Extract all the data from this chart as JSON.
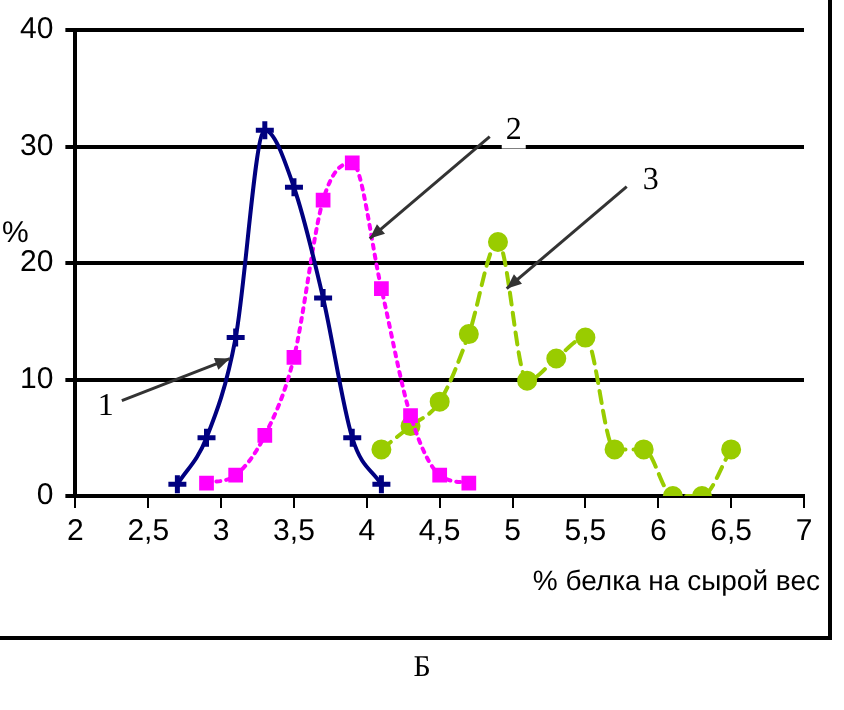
{
  "chart_data": {
    "type": "line",
    "xlabel": "% белка на сырой вес",
    "ylabel": "%",
    "xlim": [
      2,
      7
    ],
    "xticks": [
      2,
      {
        "value": 2.5,
        "label": "2,5"
      },
      3,
      {
        "value": 3.5,
        "label": "3,5"
      },
      4,
      {
        "value": 4.5,
        "label": "4,5"
      },
      5,
      {
        "value": 5.5,
        "label": "5,5"
      },
      6,
      {
        "value": 6.5,
        "label": "6,5"
      },
      7
    ],
    "ylim": [
      0,
      40
    ],
    "yticks": [
      0,
      10,
      20,
      30,
      40
    ],
    "grid": "y",
    "legend": false,
    "series": [
      {
        "color": "#000080",
        "marker": "cross",
        "line_style": "solid",
        "x": [
          2.7,
          2.9,
          3.1,
          3.3,
          3.5,
          3.7,
          3.9,
          4.1
        ],
        "values": [
          1,
          5,
          13.6,
          31.4,
          26.5,
          17,
          5,
          1
        ]
      },
      {
        "color": "#ff00ff",
        "marker": "square",
        "line_style": "dotted",
        "x": [
          2.9,
          3.1,
          3.3,
          3.5,
          3.7,
          3.9,
          4.1,
          4.3,
          4.5,
          4.7
        ],
        "values": [
          1.1,
          1.8,
          5.2,
          11.9,
          25.4,
          28.6,
          17.8,
          6.9,
          1.8,
          1.1
        ]
      },
      {
        "color": "#99cc00",
        "marker": "circle",
        "line_style": "dashed",
        "x": [
          4.1,
          4.3,
          4.5,
          4.7,
          4.9,
          5.1,
          5.3,
          5.5,
          5.7,
          5.9,
          6.1,
          6.3,
          6.5
        ],
        "values": [
          4,
          6,
          8.1,
          13.9,
          21.8,
          9.9,
          11.8,
          13.6,
          4,
          4,
          0,
          0,
          4
        ]
      }
    ],
    "annotations": [
      {
        "text": "1",
        "x": 3.06,
        "y": 11.8
      },
      {
        "text": "2",
        "x": 4.02,
        "y": 22.1
      },
      {
        "text": "3",
        "x": 4.96,
        "y": 17.8
      },
      "Б"
    ]
  }
}
